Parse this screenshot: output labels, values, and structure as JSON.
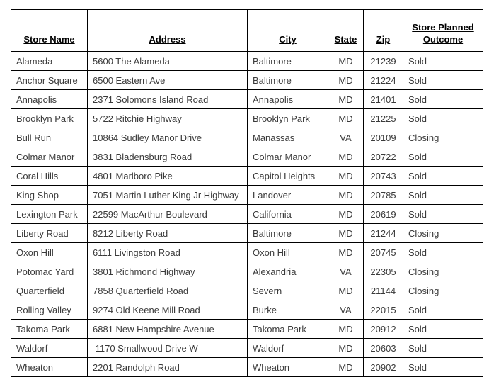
{
  "colors": {
    "background": "#ffffff",
    "border": "#000000",
    "header_text": "#000000",
    "body_text": "#3a3a3a"
  },
  "table": {
    "columns": [
      {
        "key": "store-name",
        "label": "Store Name",
        "align": "left"
      },
      {
        "key": "address",
        "label": "Address",
        "align": "left"
      },
      {
        "key": "city",
        "label": "City",
        "align": "left"
      },
      {
        "key": "state",
        "label": "State",
        "align": "center"
      },
      {
        "key": "zip",
        "label": "Zip",
        "align": "center"
      },
      {
        "key": "outcome",
        "label": "Store Planned Outcome",
        "align": "left"
      }
    ],
    "rows": [
      [
        "Alameda",
        "5600 The Alameda",
        "Baltimore",
        "MD",
        "21239",
        "Sold"
      ],
      [
        "Anchor Square",
        "6500 Eastern Ave",
        "Baltimore",
        "MD",
        "21224",
        "Sold"
      ],
      [
        "Annapolis",
        "2371 Solomons Island Road",
        "Annapolis",
        "MD",
        "21401",
        "Sold"
      ],
      [
        "Brooklyn Park",
        "5722 Ritchie Highway",
        "Brooklyn Park",
        "MD",
        "21225",
        "Sold"
      ],
      [
        "Bull Run",
        "10864 Sudley Manor Drive",
        "Manassas",
        "VA",
        "20109",
        "Closing"
      ],
      [
        "Colmar Manor",
        "3831 Bladensburg Road",
        "Colmar Manor",
        "MD",
        "20722",
        "Sold"
      ],
      [
        "Coral Hills",
        "4801 Marlboro Pike",
        "Capitol Heights",
        "MD",
        "20743",
        "Sold"
      ],
      [
        "King Shop",
        "7051 Martin Luther King Jr Highway",
        "Landover",
        "MD",
        "20785",
        "Sold"
      ],
      [
        "Lexington Park",
        "22599 MacArthur Boulevard",
        "California",
        "MD",
        "20619",
        "Sold"
      ],
      [
        "Liberty Road",
        "8212 Liberty Road",
        "Baltimore",
        "MD",
        "21244",
        "Closing"
      ],
      [
        "Oxon Hill",
        "6111 Livingston Road",
        "Oxon Hill",
        "MD",
        "20745",
        "Sold"
      ],
      [
        "Potomac Yard",
        "3801 Richmond Highway",
        "Alexandria",
        "VA",
        "22305",
        "Closing"
      ],
      [
        "Quarterfield",
        "7858 Quarterfield Road",
        "Severn",
        "MD",
        "21144",
        "Closing"
      ],
      [
        "Rolling Valley",
        "9274 Old Keene Mill Road",
        "Burke",
        "VA",
        "22015",
        "Sold"
      ],
      [
        "Takoma Park",
        "6881 New Hampshire Avenue",
        "Takoma Park",
        "MD",
        "20912",
        "Sold"
      ],
      [
        "Waldorf",
        " 1170 Smallwood Drive W",
        "Waldorf",
        "MD",
        "20603",
        "Sold"
      ],
      [
        "Wheaton",
        "2201 Randolph Road",
        "Wheaton",
        "MD",
        "20902",
        "Sold"
      ]
    ]
  }
}
